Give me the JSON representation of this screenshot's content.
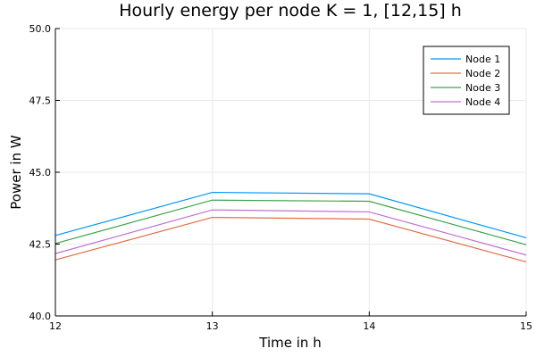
{
  "chart_data": {
    "type": "line",
    "title": "Hourly energy per node K = 1, [12,15] h",
    "xlabel": "Time in h",
    "ylabel": "Power in W",
    "x": [
      12,
      13,
      14,
      15
    ],
    "xlim": [
      12,
      15
    ],
    "ylim": [
      40,
      50
    ],
    "xticks": [
      "12",
      "13",
      "14",
      "15"
    ],
    "yticks": [
      "40.0",
      "42.5",
      "45.0",
      "47.5",
      "50.0"
    ],
    "grid": true,
    "legend_position": "top-right",
    "series": [
      {
        "name": "Node 1",
        "color": "#009af9",
        "values": [
          42.8,
          44.3,
          44.25,
          42.72
        ]
      },
      {
        "name": "Node 2",
        "color": "#e26f46",
        "values": [
          41.95,
          43.43,
          43.37,
          41.88
        ]
      },
      {
        "name": "Node 3",
        "color": "#3da44d",
        "values": [
          42.52,
          44.03,
          43.99,
          42.48
        ]
      },
      {
        "name": "Node 4",
        "color": "#c271d2",
        "values": [
          42.17,
          43.69,
          43.62,
          42.12
        ]
      }
    ]
  }
}
